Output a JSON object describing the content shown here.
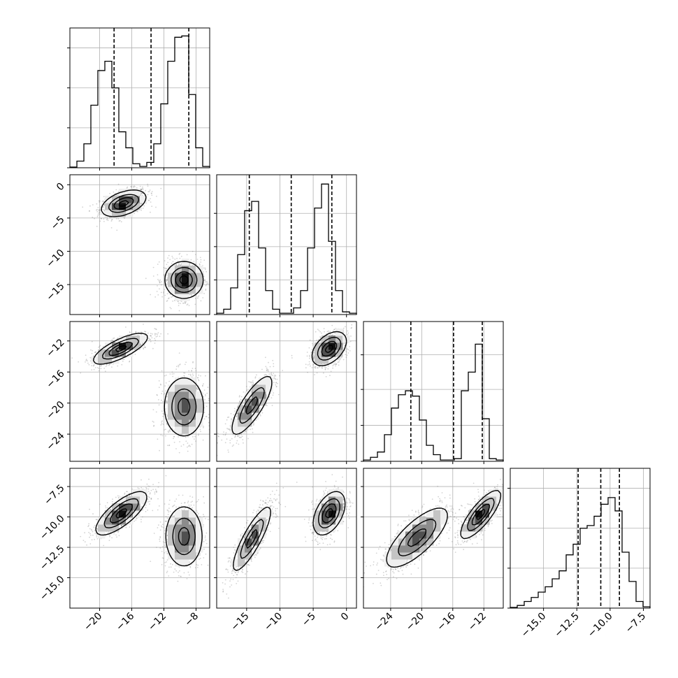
{
  "chart_data": {
    "type": "corner",
    "description_hidden": false,
    "n_params": 4,
    "grid": true,
    "quantile_lines": "dashed",
    "panels": {
      "diag": [
        {
          "param": 0,
          "xlim": [
            -23.7,
            -6.3
          ],
          "bins": [
            -23.7,
            -22.83,
            -21.96,
            -21.09,
            -20.22,
            -19.35,
            -18.48,
            -17.61,
            -16.74,
            -15.87,
            -15.0,
            -14.13,
            -13.26,
            -12.39,
            -11.52,
            -10.65,
            -9.78,
            -8.91,
            -8.04,
            -7.17,
            -6.3
          ],
          "counts": [
            0.005,
            0.05,
            0.18,
            0.47,
            0.73,
            0.8,
            0.6,
            0.27,
            0.15,
            0.03,
            0.01,
            0.04,
            0.18,
            0.48,
            0.8,
            0.98,
            0.99,
            0.55,
            0.15,
            0.01
          ],
          "quantiles": [
            -18.2,
            -13.6,
            -8.9
          ],
          "ytick_fracs": [
            0.0,
            0.3,
            0.6,
            0.9
          ]
        },
        {
          "param": 1,
          "xlim": [
            -19.5,
            1.5
          ],
          "bins": [
            -19.5,
            -18.45,
            -17.4,
            -16.35,
            -15.3,
            -14.25,
            -13.2,
            -12.15,
            -11.1,
            -10.05,
            -9.0,
            -7.95,
            -6.9,
            -5.85,
            -4.8,
            -3.75,
            -2.7,
            -1.65,
            -0.6,
            0.45,
            1.5
          ],
          "counts": [
            0.01,
            0.04,
            0.2,
            0.45,
            0.78,
            0.85,
            0.5,
            0.18,
            0.04,
            0.01,
            0.01,
            0.05,
            0.18,
            0.5,
            0.8,
            0.98,
            0.55,
            0.18,
            0.02,
            0.01
          ],
          "quantiles": [
            -14.6,
            -8.3,
            -2.2
          ],
          "ytick_fracs": [
            0.0,
            0.26,
            0.51,
            0.76
          ]
        },
        {
          "param": 2,
          "xlim": [
            -27.5,
            -9.5
          ],
          "bins": [
            -27.5,
            -26.6,
            -25.7,
            -24.8,
            -23.9,
            -23.0,
            -22.1,
            -21.2,
            -20.3,
            -19.4,
            -18.5,
            -17.6,
            -16.7,
            -15.8,
            -14.9,
            -14.0,
            -13.1,
            -12.2,
            -11.3,
            -10.4,
            -9.5
          ],
          "counts": [
            0.01,
            0.03,
            0.07,
            0.2,
            0.4,
            0.5,
            0.53,
            0.49,
            0.31,
            0.12,
            0.05,
            0.01,
            0.01,
            0.02,
            0.53,
            0.67,
            0.88,
            0.32,
            0.02,
            0.01
          ],
          "quantiles": [
            -21.4,
            -15.9,
            -12.2
          ],
          "ytick_fracs": [
            0.0,
            0.27,
            0.54,
            0.8
          ]
        },
        {
          "param": 3,
          "xlim": [
            -17.5,
            -7.0
          ],
          "bins": [
            -17.5,
            -16.975,
            -16.45,
            -15.925,
            -15.4,
            -14.875,
            -14.35,
            -13.825,
            -13.3,
            -12.775,
            -12.25,
            -11.725,
            -11.2,
            -10.675,
            -10.15,
            -9.625,
            -9.1,
            -8.575,
            -8.05,
            -7.525,
            -7.0
          ],
          "counts": [
            0.005,
            0.02,
            0.05,
            0.08,
            0.12,
            0.16,
            0.22,
            0.28,
            0.4,
            0.48,
            0.6,
            0.62,
            0.69,
            0.78,
            0.83,
            0.73,
            0.42,
            0.2,
            0.05,
            0.01
          ],
          "quantiles": [
            -12.4,
            -10.7,
            -9.3
          ],
          "ytick_fracs": [
            0.0,
            0.3,
            0.6,
            0.9
          ]
        }
      ],
      "pair": [
        {
          "row": 1,
          "col": 0,
          "xlim": [
            -23.7,
            -6.3
          ],
          "ylim": [
            -19.5,
            1.5
          ],
          "blobs": [
            {
              "cx": -17.0,
              "cy": -2.8,
              "sx": 1.4,
              "sy": 1.0,
              "rho": 0.45,
              "weight": 1.0
            },
            {
              "cx": -9.5,
              "cy": -14.3,
              "sx": 1.2,
              "sy": 1.4,
              "rho": 0.0,
              "weight": 1.0
            }
          ]
        },
        {
          "row": 2,
          "col": 0,
          "xlim": [
            -23.7,
            -6.3
          ],
          "ylim": [
            -27.5,
            -9.5
          ],
          "blobs": [
            {
              "cx": -17.4,
              "cy": -13.0,
              "sx": 1.7,
              "sy": 1.0,
              "rho": 0.75,
              "weight": 1.0
            },
            {
              "cx": -9.5,
              "cy": -20.5,
              "sx": 1.3,
              "sy": 2.0,
              "rho": 0.0,
              "weight": 0.8
            }
          ]
        },
        {
          "row": 2,
          "col": 1,
          "xlim": [
            -19.5,
            1.5
          ],
          "ylim": [
            -27.5,
            -9.5
          ],
          "blobs": [
            {
              "cx": -2.6,
              "cy": -13.0,
              "sx": 1.3,
              "sy": 1.1,
              "rho": 0.45,
              "weight": 1.0
            },
            {
              "cx": -14.2,
              "cy": -20.3,
              "sx": 1.6,
              "sy": 2.0,
              "rho": 0.8,
              "weight": 0.8
            }
          ]
        },
        {
          "row": 3,
          "col": 0,
          "xlim": [
            -23.7,
            -6.3
          ],
          "ylim": [
            -17.5,
            -6.0
          ],
          "blobs": [
            {
              "cx": -17.3,
              "cy": -9.7,
              "sx": 1.6,
              "sy": 0.9,
              "rho": 0.75,
              "weight": 1.0
            },
            {
              "cx": -9.5,
              "cy": -11.6,
              "sx": 1.2,
              "sy": 1.3,
              "rho": 0.0,
              "weight": 0.8
            }
          ]
        },
        {
          "row": 3,
          "col": 1,
          "xlim": [
            -19.5,
            1.5
          ],
          "ylim": [
            -17.5,
            -6.0
          ],
          "blobs": [
            {
              "cx": -2.6,
              "cy": -9.7,
              "sx": 1.2,
              "sy": 0.9,
              "rho": 0.45,
              "weight": 1.0
            },
            {
              "cx": -14.2,
              "cy": -11.8,
              "sx": 1.5,
              "sy": 1.4,
              "rho": 0.85,
              "weight": 0.8
            }
          ]
        },
        {
          "row": 3,
          "col": 2,
          "xlim": [
            -27.5,
            -9.5
          ],
          "ylim": [
            -17.5,
            -6.0
          ],
          "blobs": [
            {
              "cx": -12.4,
              "cy": -9.8,
              "sx": 1.3,
              "sy": 1.0,
              "rho": 0.8,
              "weight": 1.0
            },
            {
              "cx": -20.6,
              "cy": -11.7,
              "sx": 2.1,
              "sy": 1.3,
              "rho": 0.75,
              "weight": 0.8
            }
          ]
        }
      ]
    },
    "xticks": [
      {
        "values": [
          -20,
          -16,
          -12,
          -8
        ],
        "labels": [
          "−20",
          "−16",
          "−12",
          "−8"
        ]
      },
      {
        "values": [
          -15,
          -10,
          -5,
          0
        ],
        "labels": [
          "−15",
          "−10",
          "−5",
          "0"
        ]
      },
      {
        "values": [
          -24,
          -20,
          -16,
          -12
        ],
        "labels": [
          "−24",
          "−20",
          "−16",
          "−12"
        ]
      },
      {
        "values": [
          -15.0,
          -12.5,
          -10.0,
          -7.5
        ],
        "labels": [
          "−15.0",
          "−12.5",
          "−10.0",
          "−7.5"
        ]
      }
    ],
    "yticks": [
      null,
      {
        "values": [
          0,
          -5,
          -10,
          -15
        ],
        "labels": [
          "0",
          "−5",
          "−10",
          "−15"
        ]
      },
      {
        "values": [
          -12,
          -16,
          -20,
          -24
        ],
        "labels": [
          "−12",
          "−16",
          "−20",
          "−24"
        ]
      },
      {
        "values": [
          -7.5,
          -10.0,
          -12.5,
          -15.0
        ],
        "labels": [
          "−7.5",
          "−10.0",
          "−12.5",
          "−15.0"
        ]
      }
    ],
    "colors": {
      "hist": "#000000",
      "grid": "#b0b0b0",
      "scatter": "#808080",
      "contour": "#000000"
    }
  }
}
